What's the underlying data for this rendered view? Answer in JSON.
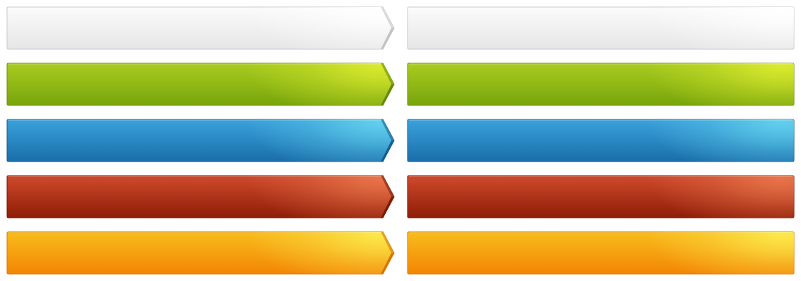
{
  "bars": [
    {
      "id": "gray",
      "top": "#fbfbfb",
      "bottom": "#e6e6e6",
      "highlight": "#ffffff",
      "border": "#c9c9c9",
      "edge": "#bdbdbd"
    },
    {
      "id": "green",
      "top": "#a9cc1f",
      "bottom": "#78a50c",
      "highlight": "#dbea2e",
      "border": "#6f9509",
      "edge": "#5f820a"
    },
    {
      "id": "blue",
      "top": "#3aa2dc",
      "bottom": "#1a6ea9",
      "highlight": "#62d1ee",
      "border": "#185f93",
      "edge": "#14558a"
    },
    {
      "id": "red",
      "top": "#cf4a2c",
      "bottom": "#8e1d07",
      "highlight": "#e8754a",
      "border": "#7e1a06",
      "edge": "#731704"
    },
    {
      "id": "orange",
      "top": "#f8bd1c",
      "bottom": "#f38505",
      "highlight": "#fce94c",
      "border": "#e07800",
      "edge": "#d06c00"
    }
  ]
}
